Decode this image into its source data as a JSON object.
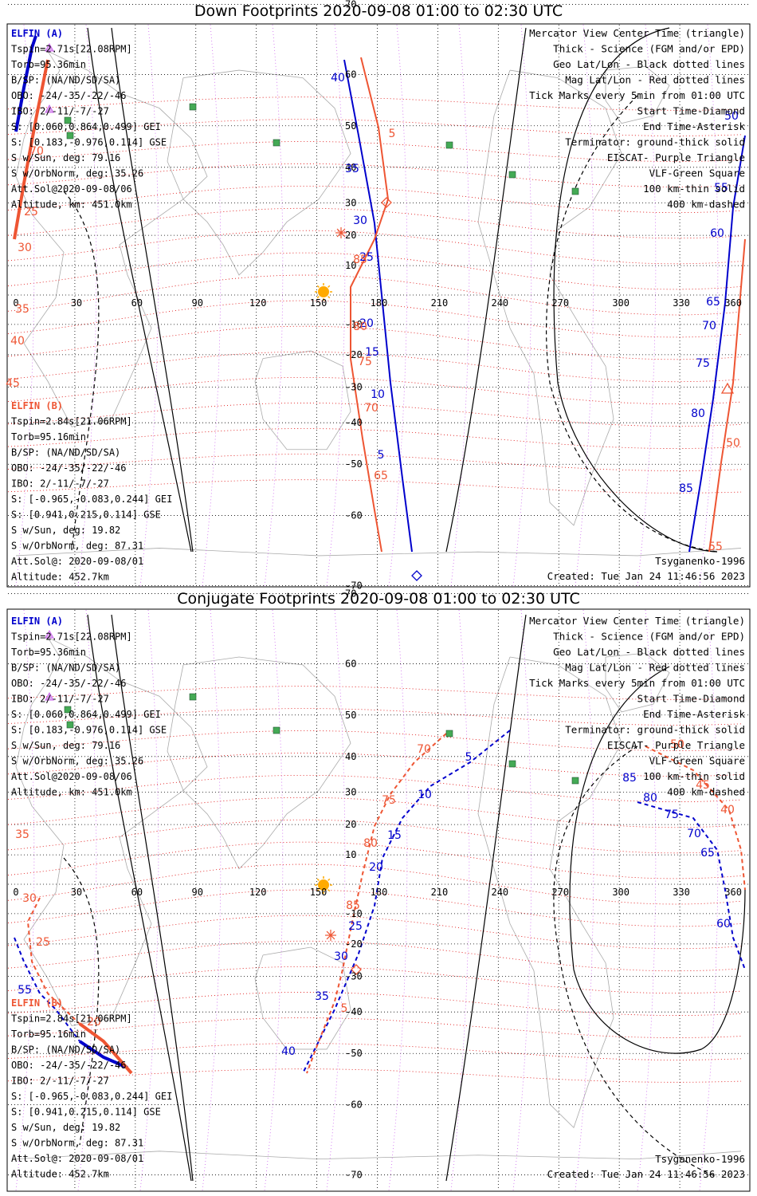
{
  "colors": {
    "elfin_a": "#0000cc",
    "elfin_b": "#ee5533",
    "mag_grid": "#dd0000",
    "geo_grid": "#000000",
    "meridian_grid": "#cc66ee",
    "vlf": "#44aa55",
    "legend_orange": "#ee5533",
    "sun": "#ffaa00"
  },
  "panels": [
    {
      "id": "down",
      "title": "Down Footprints 2020-09-08 01:00 to 02:30 UTC"
    },
    {
      "id": "conjugate",
      "title": "Conjugate Footprints 2020-09-08 01:00 to 02:30 UTC"
    }
  ],
  "elfin_a": {
    "name": "ELFIN (A)",
    "lines": [
      "Tspin=2.71s[22.08RPM]",
      "Torb=95.36min",
      "B/SP: (NA/ND/SD/SA)",
      "OBO: -24/-35/-22/-46",
      "IBO: 2/-11/-7/-27",
      "S: [0.060,0.864,0.499] GEI",
      "S: [0.183,-0.976,0.114] GSE",
      "S w/Sun, deg: 79.16",
      "S w/OrbNorm, deg: 35.26",
      "Att.Sol@2020-09-08/06",
      "Altitude, km: 451.0km"
    ]
  },
  "elfin_b": {
    "name": "ELFIN (B)",
    "lines": [
      "Tspin=2.84s[21.06RPM]",
      "Torb=95.16min",
      "B/SP: (NA/ND/SD/SA)",
      "OBO: -24/-35/-22/-46",
      "IBO: 2/-11/-7/-27",
      "S: [-0.965,-0.083,0.244] GEI",
      "S: [0.941,0.215,0.114] GSE",
      "S w/Sun, deg: 19.82",
      "S w/OrbNorm, deg: 87.31",
      "Att.Sol@: 2020-09-08/01",
      "Altitude: 452.7km"
    ]
  },
  "legend": [
    {
      "text": "Mercator View Center Time (triangle)",
      "color": "#000000"
    },
    {
      "text": "Thick - Science (FGM and/or EPD)",
      "color": "#000000"
    },
    {
      "text": "Geo Lat/Lon - Black dotted lines",
      "color": "#000000"
    },
    {
      "text": "Mag Lat/Lon - Red dotted lines",
      "color": "#dd0000"
    },
    {
      "text": "Tick Marks every 5min from 01:00 UTC",
      "color": "#000000"
    },
    {
      "text": "Start Time-Diamond",
      "color": "#000000"
    },
    {
      "text": "End Time-Asterisk",
      "color": "#000000"
    },
    {
      "text": "Terminator: ground-thick solid",
      "color": "#000000"
    },
    {
      "text": "EISCAT- Purple Triangle",
      "color": "#cc66ee"
    },
    {
      "text": "VLF-Green Square",
      "color": "#44aa55"
    },
    {
      "text": "100 km-thin solid",
      "color": "#000000"
    },
    {
      "text": "400 km-dashed",
      "color": "#000000"
    }
  ],
  "footer": {
    "model": "Tsyganenko-1996",
    "created": "Created: Tue Jan 24 11:46:56 2023"
  },
  "map": {
    "projection": "Mercator",
    "lon_ticks": [
      "0",
      "30",
      "60",
      "90",
      "120",
      "150",
      "180",
      "210",
      "240",
      "270",
      "300",
      "330",
      "360"
    ],
    "lat_ticks": [
      "70",
      "60",
      "50",
      "40",
      "30",
      "20",
      "10",
      "-10",
      "-20",
      "-30",
      "-40",
      "-50",
      "-60",
      "-70"
    ]
  },
  "down_labels": {
    "blue": [
      "40",
      "35",
      "30",
      "25",
      "20",
      "15",
      "10",
      "5",
      "50",
      "55",
      "60",
      "65",
      "70",
      "75",
      "80",
      "85"
    ],
    "red": [
      "5",
      "85",
      "80",
      "75",
      "70",
      "65",
      "70",
      "25",
      "30",
      "35",
      "40",
      "45",
      "50",
      "55"
    ]
  },
  "conj_labels": {
    "blue": [
      "5",
      "10",
      "15",
      "20",
      "25",
      "30",
      "35",
      "40",
      "55",
      "85",
      "80",
      "75",
      "70",
      "65",
      "60"
    ],
    "red": [
      "70",
      "75",
      "80",
      "85",
      "5",
      "35",
      "30",
      "25",
      "20",
      "50",
      "45",
      "40"
    ]
  }
}
